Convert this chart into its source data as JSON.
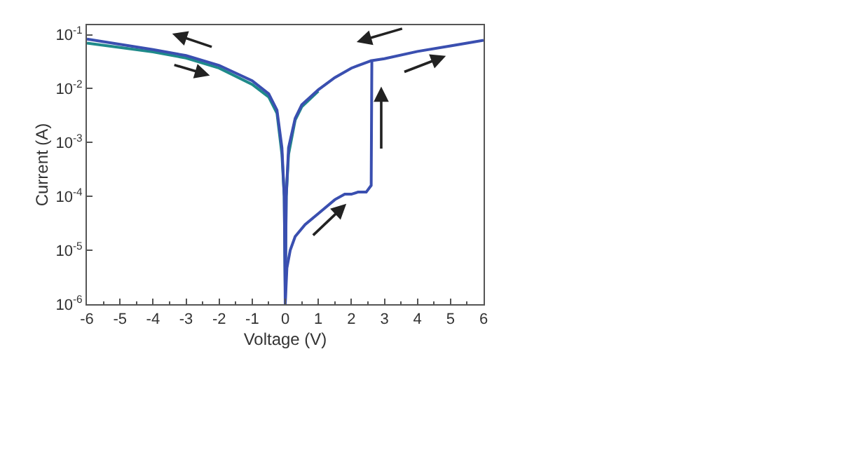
{
  "chart_data": {
    "type": "line",
    "xlabel": "Voltage (V)",
    "ylabel": "Current (A)",
    "log": "y",
    "xlim": [
      -6,
      6
    ],
    "xticks": [
      -6,
      -5,
      -4,
      -3,
      -2,
      -1,
      0,
      1,
      2,
      3,
      4,
      5,
      6
    ],
    "ylim": [
      1e-06,
      0.15
    ],
    "yticks": [
      {
        "value": 1e-06,
        "label": "10$^{-6}$"
      },
      {
        "value": 1e-05,
        "label": "10$^{-5}$"
      },
      {
        "value": 0.0001,
        "label": "10$^{-4}$"
      },
      {
        "value": 0.001,
        "label": "10$^{-3}$"
      },
      {
        "value": 0.01,
        "label": "10$^{-2}$"
      },
      {
        "value": 0.1,
        "label": "10$^{-1}$"
      }
    ],
    "marker": "none",
    "line_style": "solid",
    "series": [
      {
        "color": "#1f8a8a",
        "x": [
          -6,
          -4,
          -3,
          -2,
          -1,
          -0.5,
          -0.25,
          -0.1,
          -0.03,
          0,
          0.03,
          0.1,
          0.3,
          0.5,
          1
        ],
        "values": [
          0.07,
          0.048,
          0.037,
          0.024,
          0.012,
          0.007,
          0.0035,
          0.0006,
          0.0001,
          2e-06,
          0.0001,
          0.0006,
          0.0026,
          0.0046,
          0.009
        ]
      },
      {
        "color": "#3a4fb0",
        "x": [
          -6,
          -4,
          -3,
          -2,
          -1,
          -0.5,
          -0.25,
          -0.1,
          -0.03,
          0,
          0.05,
          0.15,
          0.3,
          0.6,
          1,
          1.5,
          1.8,
          2.0,
          2.2,
          2.45,
          2.6,
          2.62,
          3,
          4,
          5,
          6
        ],
        "values": [
          0.083,
          0.053,
          0.041,
          0.027,
          0.014,
          0.008,
          0.004,
          0.0008,
          0.0001,
          1e-06,
          4.7e-06,
          1e-05,
          1.8e-05,
          3e-05,
          4.8e-05,
          8.7e-05,
          0.00011,
          0.00011,
          0.00012,
          0.00012,
          0.00016,
          0.033,
          0.036,
          0.049,
          0.062,
          0.079
        ]
      },
      {
        "color": "#3a4fb0",
        "x": [
          0,
          0.03,
          0.1,
          0.3,
          0.5,
          1,
          1.5,
          2,
          2.6
        ],
        "values": [
          1e-06,
          0.0001,
          0.0008,
          0.0028,
          0.005,
          0.0095,
          0.016,
          0.024,
          0.033
        ]
      }
    ]
  }
}
